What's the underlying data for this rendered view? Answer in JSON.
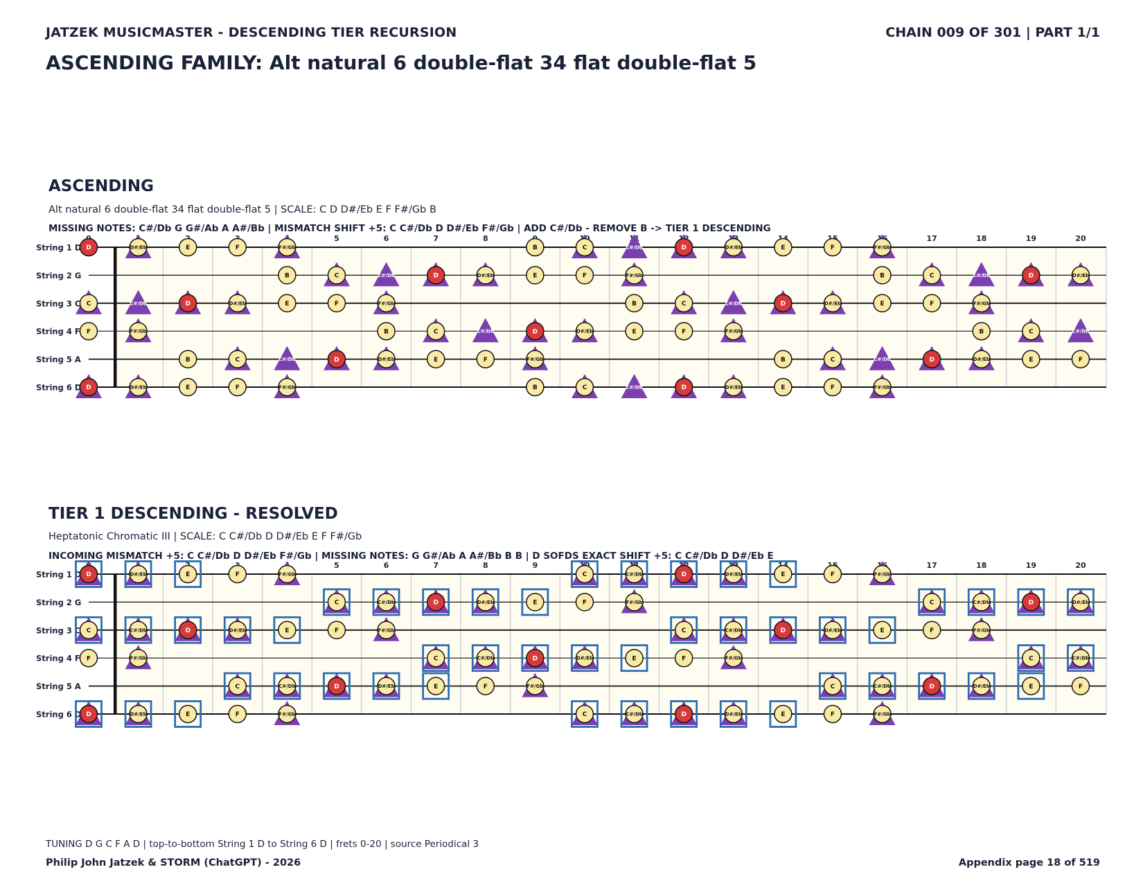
{
  "header": {
    "left": "JATZEK MUSICMASTER - DESCENDING TIER RECURSION",
    "right": "CHAIN 009 OF 301  |  PART 1/1",
    "title": "ASCENDING FAMILY: Alt natural 6 double-flat 34 flat double-flat 5"
  },
  "strings": [
    "String 1 D",
    "String 2 G",
    "String 3 C",
    "String 4 F",
    "String 5 A",
    "String 6 D"
  ],
  "frets": [
    "0",
    "1",
    "2",
    "3",
    "4",
    "5",
    "6",
    "7",
    "8",
    "9",
    "10",
    "11",
    "12",
    "13",
    "14",
    "15",
    "16",
    "17",
    "18",
    "19",
    "20"
  ],
  "colors": {
    "root": "#d83a3a",
    "note": "#fbeaa6",
    "triangle": "#7b3fb0",
    "box": "#2a6db0",
    "board": "#fffdf2"
  },
  "sections": [
    {
      "title": "ASCENDING",
      "subtitle": "Alt natural 6 double-flat 34 flat double-flat 5  |  SCALE: C D D#/Eb E F F#/Gb B",
      "info": "MISSING NOTES: C#/Db G G#/Ab A A#/Bb  |  MISMATCH SHIFT +5: C C#/Db D D#/Eb F#/Gb  |  ADD C#/Db - REMOVE B -> TIER 1 DESCENDING",
      "boxed": false,
      "rows": [
        [
          "D*",
          "D#/Eb^",
          "E",
          "F",
          "F#/Gb^",
          "",
          "",
          "",
          "",
          "B",
          "C^",
          "C#/Db^",
          "D*^",
          "D#/Eb^",
          "E",
          "F",
          "F#/Gb^",
          "",
          "",
          "",
          ""
        ],
        [
          "",
          "",
          "",
          "",
          "B",
          "C^",
          "C#/Db^",
          "D*^",
          "D#/Eb^",
          "E",
          "F",
          "F#/Gb^",
          "",
          "",
          "",
          "",
          "B",
          "C^",
          "C#/Db^",
          "D*^",
          "D#/Eb^"
        ],
        [
          "C^",
          "C#/Db^",
          "D*^",
          "D#/Eb^",
          "E",
          "F",
          "F#/Gb^",
          "",
          "",
          "",
          "",
          "B",
          "C^",
          "C#/Db^",
          "D*^",
          "D#/Eb^",
          "E",
          "F",
          "F#/Gb^",
          "",
          ""
        ],
        [
          "F",
          "F#/Gb^",
          "",
          "",
          "",
          "",
          "B",
          "C^",
          "C#/Db^",
          "D*^",
          "D#/Eb^",
          "E",
          "F",
          "F#/Gb^",
          "",
          "",
          "",
          "",
          "B",
          "C^",
          "C#/Db^"
        ],
        [
          "",
          "",
          "B",
          "C^",
          "C#/Db^",
          "D*^",
          "D#/Eb^",
          "E",
          "F",
          "F#/Gb^",
          "",
          "",
          "",
          "",
          "B",
          "C^",
          "C#/Db^",
          "D*^",
          "D#/Eb^",
          "E",
          "F"
        ],
        [
          "D*^",
          "D#/Eb^",
          "E",
          "F",
          "F#/Gb^",
          "",
          "",
          "",
          "",
          "B",
          "C^",
          "C#/Db^",
          "D*^",
          "D#/Eb^",
          "E",
          "F",
          "F#/Gb^",
          "",
          "",
          "",
          ""
        ]
      ]
    },
    {
      "title": "TIER 1 DESCENDING - RESOLVED",
      "subtitle": "Heptatonic Chromatic III  |  SCALE: C C#/Db D D#/Eb E F F#/Gb",
      "info": "INCOMING MISMATCH +5: C C#/Db D D#/Eb F#/Gb  |  MISSING NOTES: G G#/Ab A A#/Bb B B  |  D SOFDS EXACT SHIFT +5: C C#/Db D D#/Eb E",
      "boxed": true,
      "rows": [
        [
          "D*^#",
          "D#/Eb^#",
          "E#",
          "F",
          "F#/Gb^",
          "",
          "",
          "",
          "",
          "",
          "C^#",
          "C#/Db^#",
          "D*^#",
          "D#/Eb^#",
          "E#",
          "F",
          "F#/Gb^",
          "",
          "",
          "",
          ""
        ],
        [
          "",
          "",
          "",
          "",
          "",
          "C^#",
          "C#/Db^#",
          "D*^#",
          "D#/Eb^#",
          "E#",
          "F",
          "F#/Gb^",
          "",
          "",
          "",
          "",
          "",
          "C^#",
          "C#/Db^#",
          "D*^#",
          "D#/Eb^#"
        ],
        [
          "C^#",
          "C#/Db^#",
          "D*^#",
          "D#/Eb^#",
          "E#",
          "F",
          "F#/Gb^",
          "",
          "",
          "",
          "",
          "",
          "C^#",
          "C#/Db^#",
          "D*^#",
          "D#/Eb^#",
          "E#",
          "F",
          "F#/Gb^",
          "",
          ""
        ],
        [
          "F",
          "F#/Gb^",
          "",
          "",
          "",
          "",
          "",
          "C^#",
          "C#/Db^#",
          "D*^#",
          "D#/Eb^#",
          "E#",
          "F",
          "F#/Gb^",
          "",
          "",
          "",
          "",
          "",
          "C^#",
          "C#/Db^#"
        ],
        [
          "",
          "",
          "",
          "C^#",
          "C#/Db^#",
          "D*^#",
          "D#/Eb^#",
          "E#",
          "F",
          "F#/Gb^",
          "",
          "",
          "",
          "",
          "",
          "C^#",
          "C#/Db^#",
          "D*^#",
          "D#/Eb^#",
          "E#",
          "F"
        ],
        [
          "D*^#",
          "D#/Eb^#",
          "E#",
          "F",
          "F#/Gb^",
          "",
          "",
          "",
          "",
          "",
          "C^#",
          "C#/Db^#",
          "D*^#",
          "D#/Eb^#",
          "E#",
          "F",
          "F#/Gb^",
          "",
          "",
          "",
          ""
        ]
      ]
    }
  ],
  "footer": {
    "tuning": "TUNING D G C F A D | top-to-bottom String 1 D to String 6 D | frets 0-20 | source Periodical 3",
    "credit": "Philip John Jatzek & STORM (ChatGPT) - 2026",
    "page": "Appendix page 18 of 519"
  }
}
